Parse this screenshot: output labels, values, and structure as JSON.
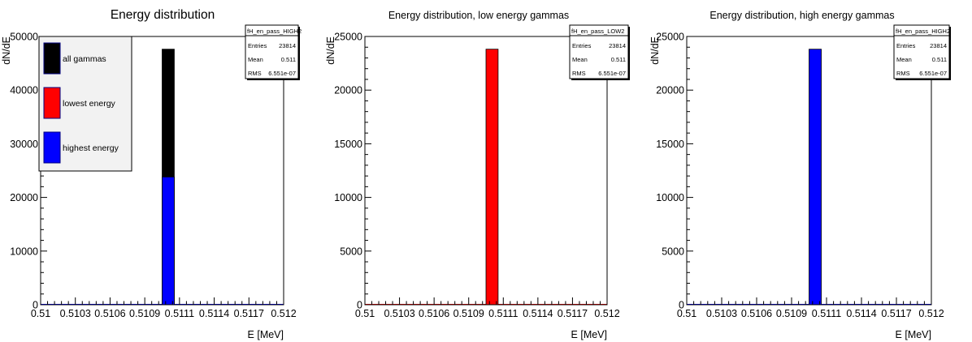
{
  "chart_data": [
    {
      "type": "bar",
      "title": "Energy distribution",
      "xlabel": "E [MeV]",
      "ylabel": "dN/dE",
      "xlim": [
        0.51,
        0.512
      ],
      "ylim": [
        0,
        50000
      ],
      "xticks": [
        "0.51",
        "0.5103",
        "0.5106",
        "0.5109",
        "0.5111",
        "0.5114",
        "0.5117",
        "0.512"
      ],
      "yticks": [
        "0",
        "10000",
        "20000",
        "30000",
        "40000",
        "50000"
      ],
      "bin_edges": [
        0.511,
        0.5111
      ],
      "series": [
        {
          "name": "all gammas",
          "values": [
            47628
          ],
          "color": "#000000"
        },
        {
          "name": "lowest energy",
          "values": [
            23814
          ],
          "color": "#ff0000"
        },
        {
          "name": "highest energy",
          "values": [
            23814
          ],
          "color": "#0000ff"
        }
      ],
      "draw_order": [
        0,
        2
      ],
      "legend": {
        "position": "top-left",
        "entries": [
          "all gammas",
          "lowest energy",
          "highest energy"
        ]
      },
      "stats": {
        "name": "fH_en_pass_HIGH2",
        "rows": [
          [
            "Entries",
            "23814"
          ],
          [
            "Mean",
            "0.511"
          ],
          [
            "RMS",
            "6.551e-07"
          ]
        ]
      }
    },
    {
      "type": "bar",
      "title": "Energy distribution, low energy gammas",
      "xlabel": "E [MeV]",
      "ylabel": "dN/dE",
      "xlim": [
        0.51,
        0.512
      ],
      "ylim": [
        0,
        25000
      ],
      "xticks": [
        "0.51",
        "0.5103",
        "0.5106",
        "0.5109",
        "0.5111",
        "0.5114",
        "0.5117",
        "0.512"
      ],
      "yticks": [
        "0",
        "5000",
        "10000",
        "15000",
        "20000",
        "25000"
      ],
      "bin_edges": [
        0.511,
        0.5111
      ],
      "series": [
        {
          "name": "",
          "values": [
            23814
          ],
          "color": "#ff0000"
        }
      ],
      "draw_order": [
        0
      ],
      "stats": {
        "name": "fH_en_pass_LOW2",
        "rows": [
          [
            "Entries",
            "23814"
          ],
          [
            "Mean",
            "0.511"
          ],
          [
            "RMS",
            "6.551e-07"
          ]
        ]
      }
    },
    {
      "type": "bar",
      "title": "Energy distribution, high energy gammas",
      "xlabel": "E [MeV]",
      "ylabel": "dN/dE",
      "xlim": [
        0.51,
        0.512
      ],
      "ylim": [
        0,
        25000
      ],
      "xticks": [
        "0.51",
        "0.5103",
        "0.5106",
        "0.5109",
        "0.5111",
        "0.5114",
        "0.5117",
        "0.512"
      ],
      "yticks": [
        "0",
        "5000",
        "10000",
        "15000",
        "20000",
        "25000"
      ],
      "bin_edges": [
        0.511,
        0.5111
      ],
      "series": [
        {
          "name": "",
          "values": [
            23814
          ],
          "color": "#0000ff"
        }
      ],
      "draw_order": [
        0
      ],
      "stats": {
        "name": "fH_en_pass_HIGH2",
        "rows": [
          [
            "Entries",
            "23814"
          ],
          [
            "Mean",
            "0.511"
          ],
          [
            "RMS",
            "6.551e-07"
          ]
        ]
      }
    }
  ]
}
